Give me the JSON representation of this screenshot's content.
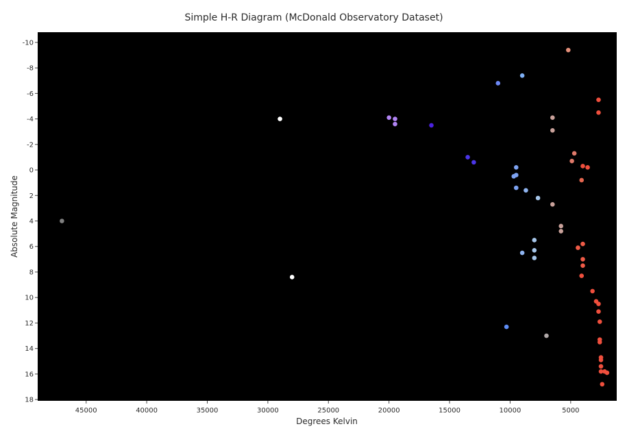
{
  "chart_data": {
    "type": "scatter",
    "title": "Simple H-R Diagram (McDonald Observatory Dataset)",
    "xlabel": "Degrees Kelvin",
    "ylabel": "Absolute Magnitude",
    "xlim": [
      49000,
      1200
    ],
    "ylim": [
      18.1,
      -10.8
    ],
    "x_reversed": true,
    "y_reversed": true,
    "xticks": [
      45000,
      40000,
      35000,
      30000,
      25000,
      20000,
      15000,
      10000,
      5000
    ],
    "yticks": [
      -10,
      -8,
      -6,
      -4,
      -2,
      0,
      2,
      4,
      6,
      8,
      10,
      12,
      14,
      16,
      18
    ],
    "plot_background": "#000000",
    "grid": false,
    "legend": "none",
    "points": [
      {
        "x": 5200,
        "y": -9.4,
        "color": "#e48f7a"
      },
      {
        "x": 9000,
        "y": -7.4,
        "color": "#7fb0f6"
      },
      {
        "x": 11000,
        "y": -6.8,
        "color": "#6c88f5"
      },
      {
        "x": 2700,
        "y": -5.5,
        "color": "#ef4f3d"
      },
      {
        "x": 2700,
        "y": -4.5,
        "color": "#ef4f3d"
      },
      {
        "x": 29000,
        "y": -4.0,
        "color": "#ffffff"
      },
      {
        "x": 20000,
        "y": -4.1,
        "color": "#b184f4"
      },
      {
        "x": 19500,
        "y": -4.0,
        "color": "#b184f4"
      },
      {
        "x": 19500,
        "y": -3.6,
        "color": "#b184f4"
      },
      {
        "x": 16500,
        "y": -3.5,
        "color": "#4b22e0"
      },
      {
        "x": 6500,
        "y": -4.1,
        "color": "#c9a19a"
      },
      {
        "x": 6500,
        "y": -3.1,
        "color": "#c9a19a"
      },
      {
        "x": 4700,
        "y": -1.3,
        "color": "#e07a6a"
      },
      {
        "x": 4900,
        "y": -0.7,
        "color": "#e07a6a"
      },
      {
        "x": 4000,
        "y": -0.3,
        "color": "#ef4f3d"
      },
      {
        "x": 3600,
        "y": -0.2,
        "color": "#ef4f3d"
      },
      {
        "x": 13500,
        "y": -1.0,
        "color": "#4b35e8"
      },
      {
        "x": 13000,
        "y": -0.6,
        "color": "#4b35e8"
      },
      {
        "x": 9500,
        "y": -0.2,
        "color": "#7da2f1"
      },
      {
        "x": 9500,
        "y": 0.4,
        "color": "#7da2f1"
      },
      {
        "x": 9700,
        "y": 0.5,
        "color": "#7da2f1"
      },
      {
        "x": 4100,
        "y": 0.8,
        "color": "#e4664f"
      },
      {
        "x": 9500,
        "y": 1.4,
        "color": "#7da2f1"
      },
      {
        "x": 8700,
        "y": 1.6,
        "color": "#8fb4f0"
      },
      {
        "x": 7700,
        "y": 2.2,
        "color": "#a6c6ea"
      },
      {
        "x": 6500,
        "y": 2.7,
        "color": "#c9a19a"
      },
      {
        "x": 47000,
        "y": 4.0,
        "color": "#808080"
      },
      {
        "x": 5800,
        "y": 4.4,
        "color": "#c9a19a"
      },
      {
        "x": 5800,
        "y": 4.8,
        "color": "#c9a19a"
      },
      {
        "x": 8000,
        "y": 5.5,
        "color": "#a6c6ea"
      },
      {
        "x": 4000,
        "y": 5.8,
        "color": "#ef5b47"
      },
      {
        "x": 4400,
        "y": 6.1,
        "color": "#ef5b47"
      },
      {
        "x": 8000,
        "y": 6.3,
        "color": "#a6c6ea"
      },
      {
        "x": 9000,
        "y": 6.5,
        "color": "#8fb4f0"
      },
      {
        "x": 8000,
        "y": 6.9,
        "color": "#a6c6ea"
      },
      {
        "x": 4000,
        "y": 7.0,
        "color": "#ef5b47"
      },
      {
        "x": 4000,
        "y": 7.5,
        "color": "#ef5b47"
      },
      {
        "x": 28000,
        "y": 8.4,
        "color": "#ffffff"
      },
      {
        "x": 4100,
        "y": 8.3,
        "color": "#ef4f3d"
      },
      {
        "x": 3200,
        "y": 9.5,
        "color": "#ef4f3d"
      },
      {
        "x": 2900,
        "y": 10.3,
        "color": "#ef4f3d"
      },
      {
        "x": 2700,
        "y": 10.5,
        "color": "#ef4f3d"
      },
      {
        "x": 2700,
        "y": 11.1,
        "color": "#ef4f3d"
      },
      {
        "x": 2600,
        "y": 11.9,
        "color": "#ef4f3d"
      },
      {
        "x": 10300,
        "y": 12.3,
        "color": "#5e8df5"
      },
      {
        "x": 7000,
        "y": 13.0,
        "color": "#b0a8a8"
      },
      {
        "x": 2600,
        "y": 13.3,
        "color": "#ef4f3d"
      },
      {
        "x": 2600,
        "y": 13.5,
        "color": "#ef4f3d"
      },
      {
        "x": 2500,
        "y": 14.7,
        "color": "#ef4f3d"
      },
      {
        "x": 2500,
        "y": 14.9,
        "color": "#ef4f3d"
      },
      {
        "x": 2500,
        "y": 15.4,
        "color": "#ef4f3d"
      },
      {
        "x": 2500,
        "y": 15.8,
        "color": "#ef4f3d"
      },
      {
        "x": 2200,
        "y": 15.8,
        "color": "#ef4f3d"
      },
      {
        "x": 2000,
        "y": 15.9,
        "color": "#ef4f3d"
      },
      {
        "x": 2400,
        "y": 16.8,
        "color": "#ef4f3d"
      }
    ]
  }
}
